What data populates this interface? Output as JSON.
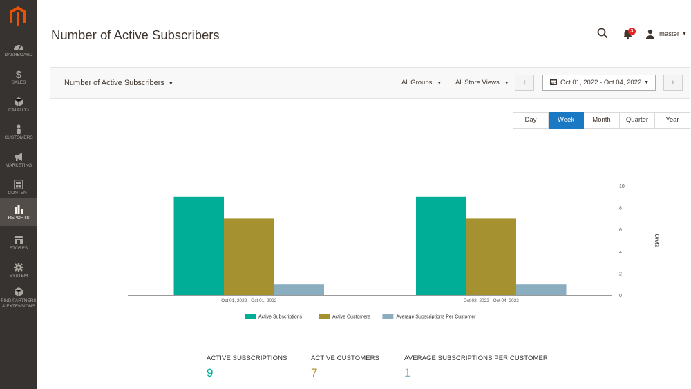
{
  "sidebar": {
    "items": [
      {
        "label": "DASHBOARD",
        "icon": "dashboard-icon"
      },
      {
        "label": "SALES",
        "icon": "dollar-icon"
      },
      {
        "label": "CATALOG",
        "icon": "cube-icon"
      },
      {
        "label": "CUSTOMERS",
        "icon": "person-icon"
      },
      {
        "label": "MARKETING",
        "icon": "megaphone-icon"
      },
      {
        "label": "CONTENT",
        "icon": "layout-icon"
      },
      {
        "label": "REPORTS",
        "icon": "bar-chart-icon"
      },
      {
        "label": "STORES",
        "icon": "store-icon"
      },
      {
        "label": "SYSTEM",
        "icon": "gear-icon"
      },
      {
        "label_1": "FIND PARTNERS",
        "label_2": "& EXTENSIONS",
        "icon": "box-icon"
      }
    ]
  },
  "header": {
    "title": "Number of Active Subscribers",
    "notification_count": "3",
    "user_name": "master"
  },
  "filters": {
    "report_select": "Number of Active Subscribers",
    "groups": "All Groups",
    "store_views": "All Store Views",
    "date_range": "Oct 01, 2022 - Oct 04, 2022"
  },
  "periods": {
    "day": "Day",
    "week": "Week",
    "month": "Month",
    "quarter": "Quarter",
    "year": "Year",
    "selected": "Week"
  },
  "chart_data": {
    "type": "bar",
    "categories": [
      "Oct 01, 2022 - Oct 01, 2022",
      "Oct 02, 2022 - Oct 04, 2022"
    ],
    "series": [
      {
        "name": "Active Subscriptions",
        "values": [
          9,
          9
        ],
        "color": "#00ae98"
      },
      {
        "name": "Active Customers",
        "values": [
          7,
          7
        ],
        "color": "#a69130"
      },
      {
        "name": "Average Subscriptions Per Customer",
        "values": [
          1,
          1
        ],
        "color": "#8aaebf"
      }
    ],
    "ylabel": "Units",
    "ylim": [
      0,
      10
    ],
    "yticks": [
      "0",
      "2",
      "4",
      "6",
      "8",
      "10"
    ],
    "y_axis_side": "right",
    "legend_position": "bottom"
  },
  "totals": [
    {
      "label": "ACTIVE SUBSCRIPTIONS",
      "value": "9",
      "color": "#00ae98"
    },
    {
      "label": "ACTIVE CUSTOMERS",
      "value": "7",
      "color": "#a69130"
    },
    {
      "label": "AVERAGE SUBSCRIPTIONS PER CUSTOMER",
      "value": "1",
      "color": "#8aaebf"
    }
  ]
}
